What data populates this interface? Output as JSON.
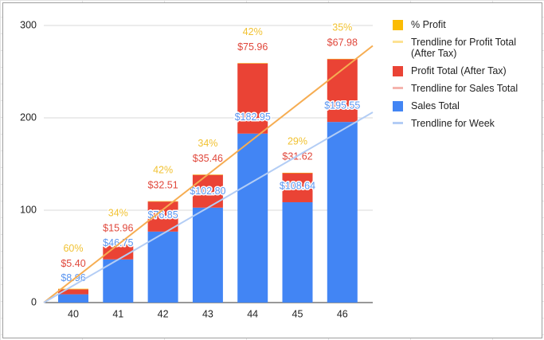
{
  "chart_data": {
    "type": "stacked_bar",
    "categories": [
      "40",
      "41",
      "42",
      "43",
      "44",
      "45",
      "46"
    ],
    "series": [
      {
        "name": "Sales Total",
        "color": "#4285f4",
        "label_color": "#5b95f0",
        "values": [
          8.96,
          46.75,
          76.85,
          102.8,
          182.95,
          108.64,
          195.55
        ],
        "value_labels": [
          "$8.96",
          "$46.75",
          "$76.85",
          "$102.80",
          "$182.95",
          "$108.64",
          "$195.55"
        ]
      },
      {
        "name": "Profit Total (After Tax)",
        "color": "#ea4335",
        "label_color": "#e0473b",
        "values": [
          5.4,
          15.96,
          32.51,
          35.46,
          75.96,
          31.62,
          67.98
        ],
        "value_labels": [
          "$5.40",
          "$15.96",
          "$32.51",
          "$35.46",
          "$75.96",
          "$31.62",
          "$67.98"
        ]
      },
      {
        "name": "% Profit",
        "color": "#fbbc04",
        "label_color": "#f1c232",
        "values": [
          0.6,
          0.34,
          0.42,
          0.34,
          0.42,
          0.29,
          0.35
        ],
        "value_labels": [
          "60%",
          "34%",
          "42%",
          "34%",
          "42%",
          "29%",
          "35%"
        ]
      }
    ],
    "trendlines": [
      {
        "name": "Trendline for Profit Total (After Tax)",
        "color": "#f6ad52",
        "legend_color": "#fde293",
        "values": [
          0,
          278
        ]
      },
      {
        "name": "Trendline for Sales Total",
        "color": "#f5b4ae",
        "legend_color": "#f5b4ae"
      },
      {
        "name": "Trendline for Week",
        "color": "#b3cdf5",
        "legend_color": "#b3cdf5",
        "values": [
          0,
          206
        ]
      }
    ],
    "legend_order": [
      2,
      "t0",
      1,
      "t1",
      0,
      "t2"
    ],
    "ylim": [
      0,
      300
    ],
    "yticks": [
      0,
      100,
      200,
      300
    ],
    "grid": true
  }
}
